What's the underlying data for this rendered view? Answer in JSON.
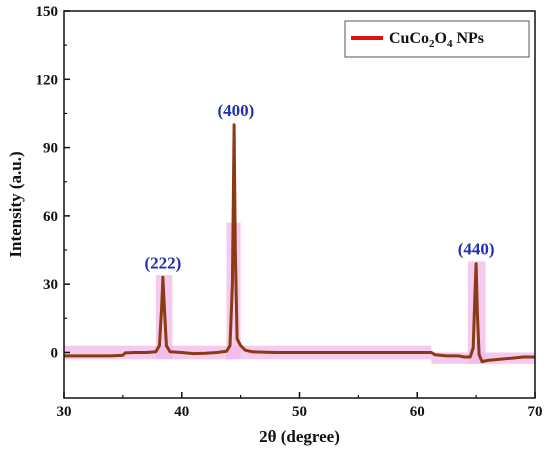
{
  "chart_data": {
    "type": "line",
    "title": "",
    "xlabel": "2θ (degree)",
    "ylabel": "Intensity (a.u.)",
    "xlim": [
      30,
      70
    ],
    "ylim": [
      -20,
      150
    ],
    "xticks": [
      30,
      40,
      50,
      60,
      70
    ],
    "yticks": [
      0,
      30,
      60,
      90,
      120,
      150
    ],
    "grid": false,
    "legend_position": "top-right",
    "legend": {
      "base": "CuCo",
      "sub1": "2",
      "mid": "O",
      "sub2": "4",
      "tail": " NPs"
    },
    "colors": {
      "line": "#8b3a14",
      "highlight": "#f0b8e8",
      "legend_line": "#e01010",
      "peak_labels": "#1f2fb0"
    },
    "annotations": [
      {
        "text": "(222)",
        "x": 38.4,
        "y": 33
      },
      {
        "text": "(400)",
        "x": 44.6,
        "y": 100
      },
      {
        "text": "(440)",
        "x": 65.0,
        "y": 39
      }
    ],
    "highlight_bands": [
      {
        "x0": 30,
        "x1": 61.2,
        "y0": -3,
        "y1": 3
      },
      {
        "x0": 37.8,
        "x1": 39.2,
        "y0": -3,
        "y1": 34
      },
      {
        "x0": 43.8,
        "x1": 45.0,
        "y0": -3,
        "y1": 57
      },
      {
        "x0": 64.3,
        "x1": 65.8,
        "y0": -5,
        "y1": 40
      },
      {
        "x0": 61.2,
        "x1": 70,
        "y0": -5,
        "y1": 0
      }
    ],
    "series": [
      {
        "values": [
          [
            30.0,
            -1.5
          ],
          [
            32.0,
            -1.5
          ],
          [
            34.0,
            -1.5
          ],
          [
            35.0,
            -1.2
          ],
          [
            35.2,
            -0.2
          ],
          [
            36.0,
            0.0
          ],
          [
            37.0,
            0.0
          ],
          [
            37.8,
            0.3
          ],
          [
            38.1,
            3.0
          ],
          [
            38.3,
            20.0
          ],
          [
            38.4,
            33.0
          ],
          [
            38.5,
            22.0
          ],
          [
            38.7,
            3.0
          ],
          [
            39.0,
            0.3
          ],
          [
            40.0,
            0.0
          ],
          [
            41.0,
            -0.5
          ],
          [
            42.0,
            -0.3
          ],
          [
            43.0,
            0.0
          ],
          [
            43.8,
            0.5
          ],
          [
            44.1,
            3.0
          ],
          [
            44.3,
            30.0
          ],
          [
            44.45,
            100.0
          ],
          [
            44.55,
            45.0
          ],
          [
            44.7,
            6.0
          ],
          [
            45.0,
            3.0
          ],
          [
            45.4,
            1.0
          ],
          [
            46.0,
            0.3
          ],
          [
            48.0,
            0.0
          ],
          [
            50.0,
            0.0
          ],
          [
            52.0,
            0.0
          ],
          [
            54.0,
            0.0
          ],
          [
            56.0,
            0.0
          ],
          [
            58.0,
            0.0
          ],
          [
            60.0,
            0.0
          ],
          [
            61.2,
            0.0
          ],
          [
            61.5,
            -1.0
          ],
          [
            62.5,
            -1.5
          ],
          [
            63.5,
            -1.5
          ],
          [
            64.0,
            -2.0
          ],
          [
            64.5,
            -2.0
          ],
          [
            64.75,
            2.0
          ],
          [
            64.9,
            25.0
          ],
          [
            65.0,
            39.0
          ],
          [
            65.1,
            18.0
          ],
          [
            65.25,
            -1.0
          ],
          [
            65.5,
            -4.0
          ],
          [
            66.0,
            -3.5
          ],
          [
            67.0,
            -3.0
          ],
          [
            68.0,
            -2.5
          ],
          [
            69.0,
            -2.0
          ],
          [
            70.0,
            -2.0
          ]
        ]
      }
    ]
  }
}
